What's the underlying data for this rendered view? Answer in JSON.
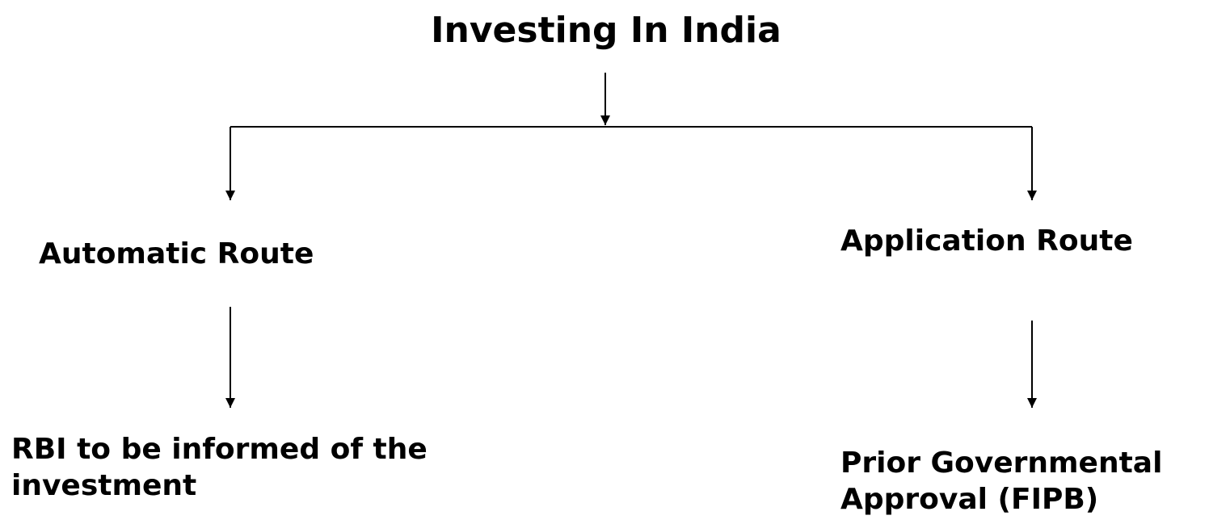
{
  "title": "Investing In India",
  "nodes": [
    {
      "label": "Automatic Route"
    },
    {
      "label": "Application Route"
    },
    {
      "label": "RBI to be informed of the\ninvestment"
    },
    {
      "label": "Prior Governmental\nApproval (FIPB)"
    }
  ]
}
